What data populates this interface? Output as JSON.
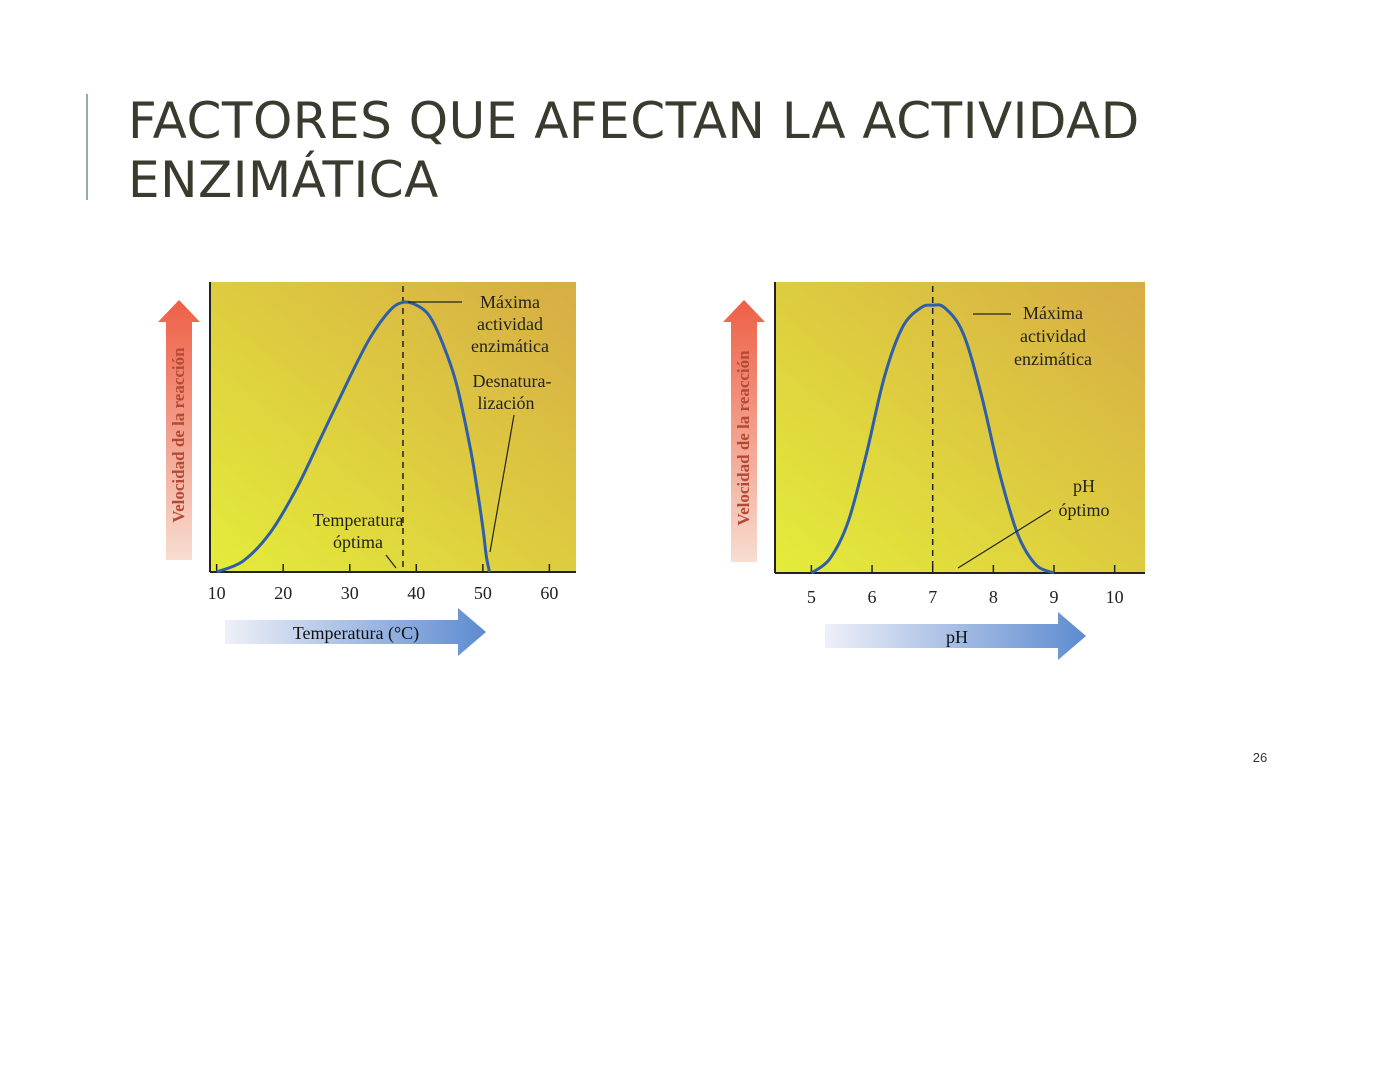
{
  "slide": {
    "title_line1": "FACTORES QUE AFECTAN LA ACTIVIDAD",
    "title_line2": "ENZIMÁTICA",
    "page_number": "26"
  },
  "colors": {
    "title": "#3a3a2e",
    "accent_bar": "#93aab0",
    "curve": "#2e5fa8",
    "plot_bg_light": "#e4ec3a",
    "plot_bg_dark": "#d7ac45",
    "y_arrow": "#ee5f45",
    "x_arrow": "#5d8bd0"
  },
  "chart_data": [
    {
      "type": "line",
      "xlabel": "Temperatura (°C)",
      "ylabel": "Velocidad de la reacción",
      "xlim": [
        9,
        64
      ],
      "x_ticks": [
        "10",
        "20",
        "30",
        "40",
        "50",
        "60"
      ],
      "x": [
        10,
        14,
        18,
        22,
        26,
        30,
        33,
        36,
        38,
        40,
        42,
        44,
        46,
        48,
        49,
        50,
        50.5,
        51
      ],
      "y": [
        0,
        4,
        14,
        30,
        50,
        70,
        84,
        94,
        97,
        96,
        92,
        82,
        68,
        46,
        32,
        16,
        6,
        0
      ],
      "optimum_x": 38,
      "annotations": {
        "max_line1": "Máxima",
        "max_line2": "actividad",
        "max_line3": "enzimática",
        "denat_line1": "Desnatura-",
        "denat_line2": "lización",
        "opt_line1": "Temperatura",
        "opt_line2": "óptima"
      }
    },
    {
      "type": "line",
      "xlabel": "pH",
      "ylabel": "Velocidad de la reacción",
      "xlim": [
        4.4,
        10.5
      ],
      "x_ticks": [
        "5",
        "6",
        "7",
        "8",
        "9",
        "10"
      ],
      "x": [
        5,
        5.3,
        5.6,
        5.9,
        6.2,
        6.5,
        6.8,
        7,
        7.2,
        7.5,
        7.8,
        8.1,
        8.4,
        8.7,
        9
      ],
      "y": [
        0,
        5,
        18,
        42,
        70,
        88,
        95,
        96,
        95,
        86,
        64,
        36,
        14,
        3,
        0
      ],
      "optimum_x": 7,
      "annotations": {
        "max_line1": "Máxima",
        "max_line2": "actividad",
        "max_line3": "enzimática",
        "opt_line1": "pH",
        "opt_line2": "óptimo"
      }
    }
  ]
}
